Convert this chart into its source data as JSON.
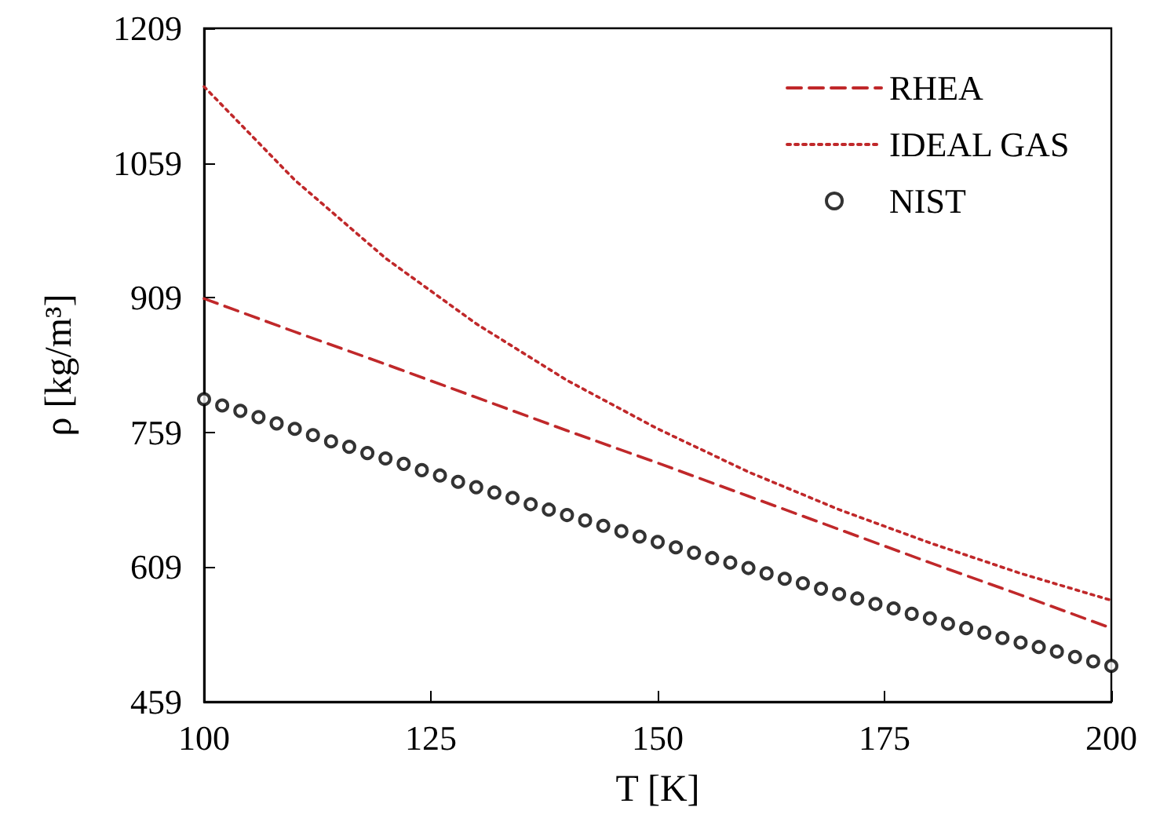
{
  "chart_data": {
    "type": "line",
    "xlabel": "T [K]",
    "ylabel": "ρ [kg/m³]",
    "xlim": [
      100,
      200
    ],
    "xticks": [
      100,
      125,
      150,
      175,
      200
    ],
    "ylim": [
      459,
      1209
    ],
    "yticks": [
      459,
      609,
      759,
      909,
      1059,
      1209
    ],
    "grid": false,
    "legend": "top right",
    "series": [
      {
        "name": "RHEA",
        "line_style": "dashed",
        "marker": "none",
        "color": "#c0282a",
        "x": [
          100,
          110,
          120,
          130,
          140,
          150,
          160,
          170,
          180,
          190,
          200
        ],
        "values": [
          908,
          871,
          835,
          798,
          761,
          725,
          688,
          651,
          614,
          578,
          541
        ]
      },
      {
        "name": "IDEAL GAS",
        "line_style": "dotted",
        "marker": "none",
        "color": "#c0282a",
        "x": [
          100,
          110,
          120,
          130,
          140,
          150,
          160,
          170,
          180,
          190,
          200
        ],
        "values": [
          1144,
          1040,
          953,
          880,
          817,
          763,
          715,
          673,
          636,
          602,
          572
        ]
      },
      {
        "name": "NIST",
        "type": "scatter",
        "marker": "circle",
        "color": "#000000",
        "x": [
          100,
          102,
          104,
          106,
          108,
          110,
          112,
          114,
          116,
          118,
          120,
          122,
          124,
          126,
          128,
          130,
          132,
          134,
          136,
          138,
          140,
          142,
          144,
          146,
          148,
          150,
          152,
          154,
          156,
          158,
          160,
          162,
          164,
          166,
          168,
          170,
          172,
          174,
          176,
          178,
          180,
          182,
          184,
          186,
          188,
          190,
          192,
          194,
          196,
          198,
          200
        ],
        "values": [
          796,
          789,
          783,
          776,
          769,
          763,
          756,
          749,
          743,
          736,
          730,
          724,
          717,
          711,
          704,
          698,
          692,
          686,
          679,
          673,
          667,
          661,
          655,
          649,
          643,
          637,
          631,
          625,
          619,
          614,
          608,
          602,
          596,
          591,
          585,
          579,
          574,
          568,
          563,
          557,
          552,
          546,
          541,
          536,
          530,
          525,
          520,
          515,
          509,
          504,
          499
        ]
      }
    ]
  }
}
